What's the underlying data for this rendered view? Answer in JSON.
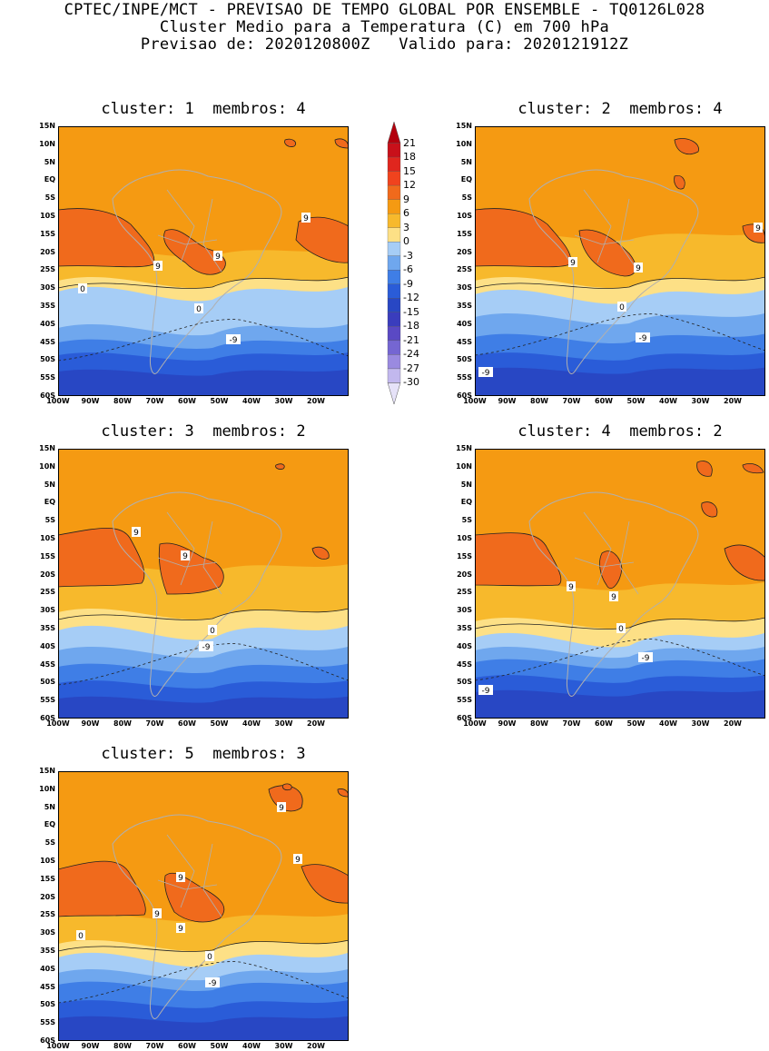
{
  "header": {
    "line1": "CPTEC/INPE/MCT - PREVISAO DE TEMPO GLOBAL POR ENSEMBLE - TQ0126L028",
    "line2": "Cluster Medio para a Temperatura (C) em 700 hPa",
    "line3": "Previsao de: 2020120800Z   Valido para: 2020121912Z"
  },
  "panels": [
    {
      "title": "cluster: 1  membros: 4"
    },
    {
      "title": "cluster: 2  membros: 4"
    },
    {
      "title": "cluster: 3  membros: 2"
    },
    {
      "title": "cluster: 4  membros: 2"
    },
    {
      "title": "cluster: 5  membros: 3"
    }
  ],
  "axes": {
    "lat_labels": [
      "15N",
      "10N",
      "5N",
      "EQ",
      "5S",
      "10S",
      "15S",
      "20S",
      "25S",
      "30S",
      "35S",
      "40S",
      "45S",
      "50S",
      "55S",
      "60S"
    ],
    "lon_labels": [
      "100W",
      "90W",
      "80W",
      "70W",
      "60W",
      "50W",
      "40W",
      "30W",
      "20W"
    ]
  },
  "colorbar": {
    "labels": [
      "21",
      "18",
      "15",
      "12",
      "9",
      "6",
      "3",
      "0",
      "-3",
      "-6",
      "-9",
      "-12",
      "-15",
      "-18",
      "-21",
      "-24",
      "-27",
      "-30"
    ],
    "colors": [
      "#b3000d",
      "#c8101a",
      "#e0261e",
      "#f0431e",
      "#f06a1c",
      "#f59a12",
      "#f7b92c",
      "#fde086",
      "#a6cdf6",
      "#6fa7ee",
      "#3f7ee6",
      "#2a5cd8",
      "#2847c4",
      "#3a3dbd",
      "#5a49c4",
      "#7566d2",
      "#9a8ae0",
      "#c2b8ee",
      "#e6e2f8"
    ]
  },
  "contour_labels": {
    "nine": "9",
    "zero": "0",
    "minus_nine": "-9"
  }
}
